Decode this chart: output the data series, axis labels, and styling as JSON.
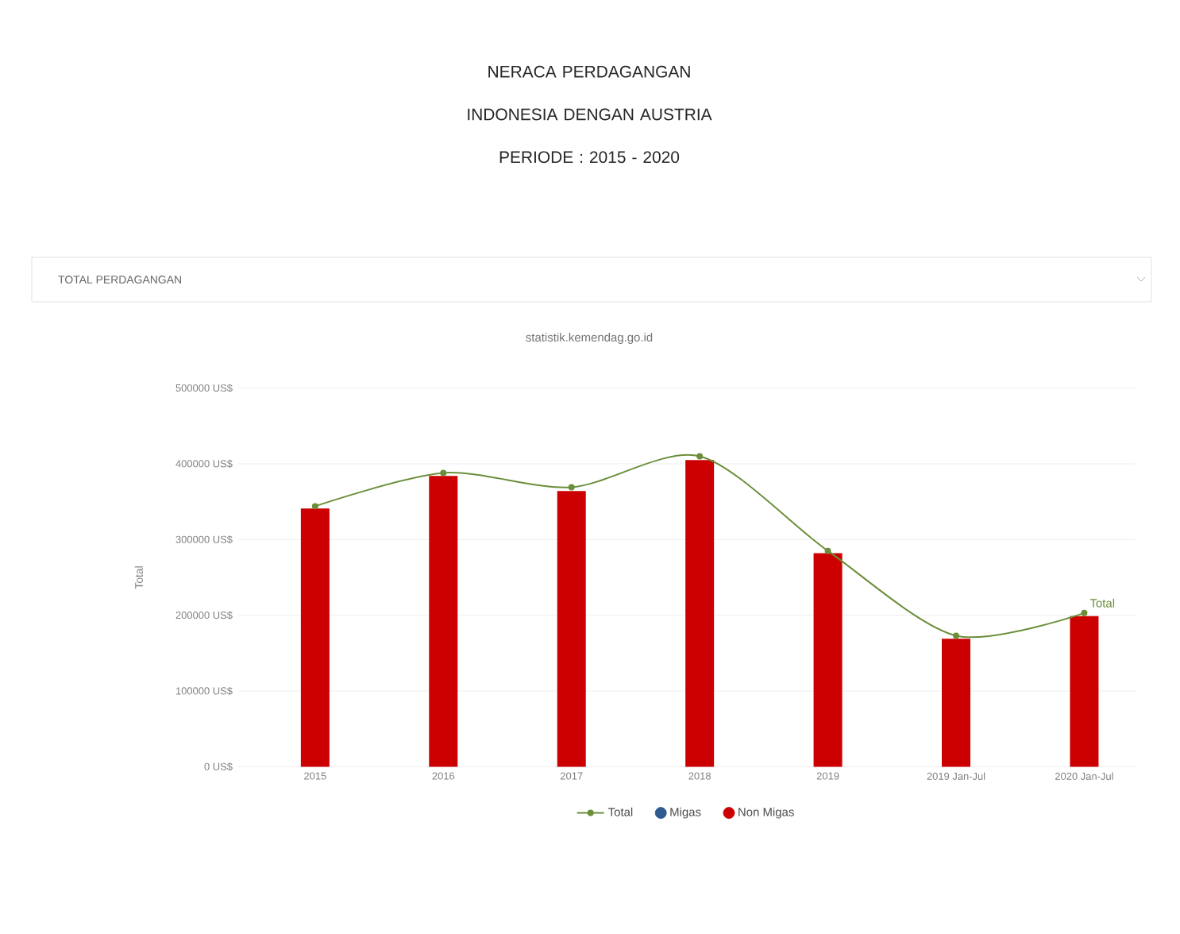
{
  "chart_data": {
    "type": "bar",
    "title": "NERACA PERDAGANGAN\nINDONESIA DENGAN AUSTRIA\nPERIODE : 2015 - 2020",
    "subtitle": "statistik.kemendag.go.id",
    "ylabel": "Total",
    "annotations": [
      "TOTAL PERDAGANGAN"
    ],
    "categories": [
      "2015",
      "2016",
      "2017",
      "2018",
      "2019",
      "2019 Jan-Jul",
      "2020 Jan-Jul"
    ],
    "series": [
      {
        "name": "Total",
        "type": "line",
        "color": "#6b8e3a",
        "marker": "circle",
        "values": [
          344000,
          388000,
          369000,
          410000,
          285000,
          173000,
          203000
        ]
      },
      {
        "name": "Migas",
        "color": "#2f5b8f",
        "values": [
          null,
          null,
          null,
          null,
          null,
          null,
          null
        ]
      },
      {
        "name": "Non Migas",
        "color": "#cc0000",
        "values": [
          341000,
          384000,
          364000,
          405000,
          282000,
          169000,
          199000
        ]
      }
    ],
    "ylim": [
      0,
      500000
    ],
    "yticks": [
      {
        "value": 0,
        "label": "0 US$"
      },
      {
        "value": 100000,
        "label": "100000 US$"
      },
      {
        "value": 200000,
        "label": "200000 US$"
      },
      {
        "value": 300000,
        "label": "300000 US$"
      },
      {
        "value": 400000,
        "label": "400000 US$"
      },
      {
        "value": 500000,
        "label": "500000 US$"
      }
    ],
    "grid": "y",
    "legend": "bottom"
  }
}
